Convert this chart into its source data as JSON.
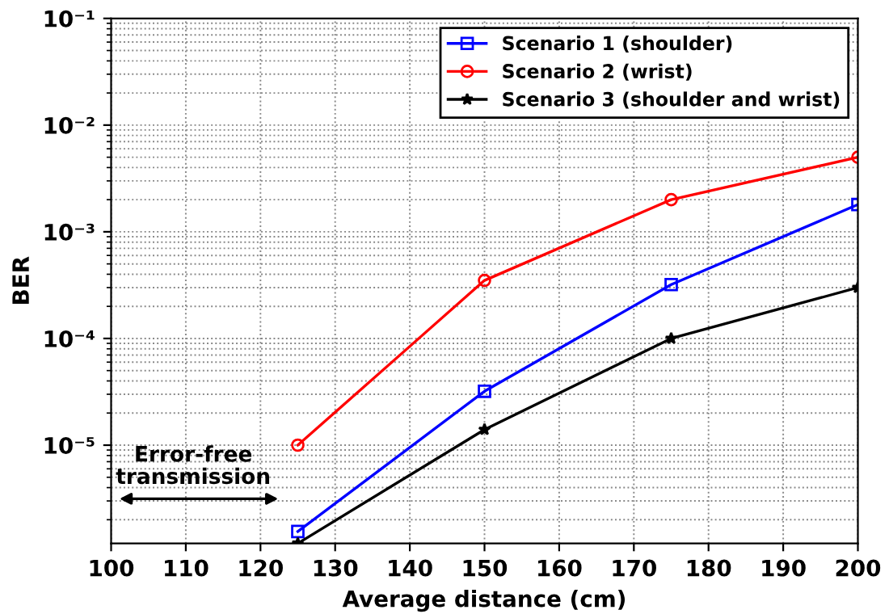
{
  "chart_data": {
    "type": "line",
    "xlabel": "Average distance (cm)",
    "ylabel": "BER",
    "x": [
      125,
      150,
      175,
      200
    ],
    "series": [
      {
        "name": "Scenario 1 (shoulder)",
        "color": "#0000ff",
        "marker": "square",
        "values": [
          1.55e-06,
          3.2e-05,
          0.00032,
          0.0018
        ]
      },
      {
        "name": "Scenario 2 (wrist)",
        "color": "#ff0000",
        "marker": "circle",
        "values": [
          1e-05,
          0.00035,
          0.002,
          0.005
        ]
      },
      {
        "name": "Scenario 3 (shoulder and wrist)",
        "color": "#000000",
        "marker": "star",
        "values": [
          1.2e-06,
          1.4e-05,
          0.0001,
          0.0003
        ]
      }
    ],
    "log": "y",
    "xlim": [
      100,
      200
    ],
    "xticks": [
      100,
      110,
      120,
      130,
      140,
      150,
      160,
      170,
      180,
      190,
      200
    ],
    "ylim": [
      1.2e-06,
      0.1
    ],
    "yticks": [
      {
        "value": 1e-05,
        "label": "10⁻⁵"
      },
      {
        "value": 0.0001,
        "label": "10⁻⁴"
      },
      {
        "value": 0.001,
        "label": "10⁻³"
      },
      {
        "value": 0.01,
        "label": "10⁻²"
      },
      {
        "value": 0.1,
        "label": "10⁻¹"
      }
    ],
    "grid": true,
    "legend": "top right",
    "line_style": "solid",
    "annotations": [
      "Error-free transmission"
    ]
  }
}
